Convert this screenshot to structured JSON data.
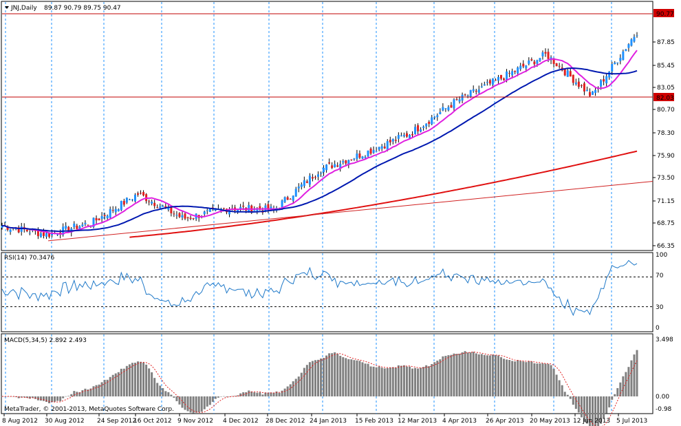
{
  "header": {
    "symbol_label": "JNJ,Daily",
    "ohlc_label": "89.87 90.79 89.75 90.47"
  },
  "price_panel": {
    "y_ticks": [
      "87.85",
      "85.45",
      "83.05",
      "80.70",
      "78.30",
      "75.90",
      "73.50",
      "71.15",
      "68.75",
      "66.35"
    ],
    "hline_top_label": "90.77",
    "hline_bottom_label": "82.03",
    "colors": {
      "up": "#1e90ff",
      "down": "#e02020",
      "ma_fast": "#e020e0",
      "ma_mid": "#0018b0",
      "ma_slow": "#e01010",
      "hline": "#c00000",
      "trend": "#d02020"
    }
  },
  "rsi_panel": {
    "label": "RSI(14) 70.3476",
    "y_ticks": [
      "100",
      "70",
      "30",
      "0"
    ],
    "color": "#1e78c8"
  },
  "macd_panel": {
    "label": "MACD(5,34,5) 2.892 2.493",
    "y_ticks": [
      "3.498",
      "0.00",
      "-0.98"
    ],
    "bar_color": "#808080",
    "signal_color": "#e02020"
  },
  "copyright": "MetaTrader, © 2001-2013, MetaQuotes Software Corp.",
  "x_labels": [
    "8 Aug 2012",
    "30 Aug 2012",
    "24 Sep 2012",
    "16 Oct 2012",
    "9 Nov 2012",
    "4 Dec 2012",
    "28 Dec 2012",
    "24 Jan 2013",
    "15 Feb 2013",
    "12 Mar 2013",
    "4 Apr 2013",
    "26 Apr 2013",
    "20 May 2013",
    "12 Jun 2013",
    "5 Jul 2013"
  ],
  "chart_data": {
    "type": "line",
    "symbol": "JNJ",
    "timeframe": "Daily",
    "y_range": [
      66.35,
      91.5
    ],
    "close_series": [
      {
        "date": "8 Aug 2012",
        "close": 68.6
      },
      {
        "date": "30 Aug 2012",
        "close": 67.6
      },
      {
        "date": "24 Sep 2012",
        "close": 69.0
      },
      {
        "date": "16 Oct 2012",
        "close": 72.2
      },
      {
        "date": "9 Nov 2012",
        "close": 69.4
      },
      {
        "date": "4 Dec 2012",
        "close": 70.6
      },
      {
        "date": "28 Dec 2012",
        "close": 70.4
      },
      {
        "date": "24 Jan 2013",
        "close": 74.9
      },
      {
        "date": "15 Feb 2013",
        "close": 76.8
      },
      {
        "date": "12 Mar 2013",
        "close": 79.0
      },
      {
        "date": "4 Apr 2013",
        "close": 82.6
      },
      {
        "date": "26 Apr 2013",
        "close": 85.2
      },
      {
        "date": "20 May 2013",
        "close": 87.9
      },
      {
        "date": "12 Jun 2013",
        "close": 83.2
      },
      {
        "date": "5 Jul 2013",
        "close": 90.47
      }
    ],
    "horizontal_levels": [
      90.77,
      82.03
    ],
    "rsi": {
      "label": "RSI(14)",
      "last": 70.3476,
      "levels": [
        70,
        30
      ]
    },
    "macd": {
      "label": "MACD(5,34,5)",
      "main": 2.892,
      "signal": 2.493
    }
  }
}
